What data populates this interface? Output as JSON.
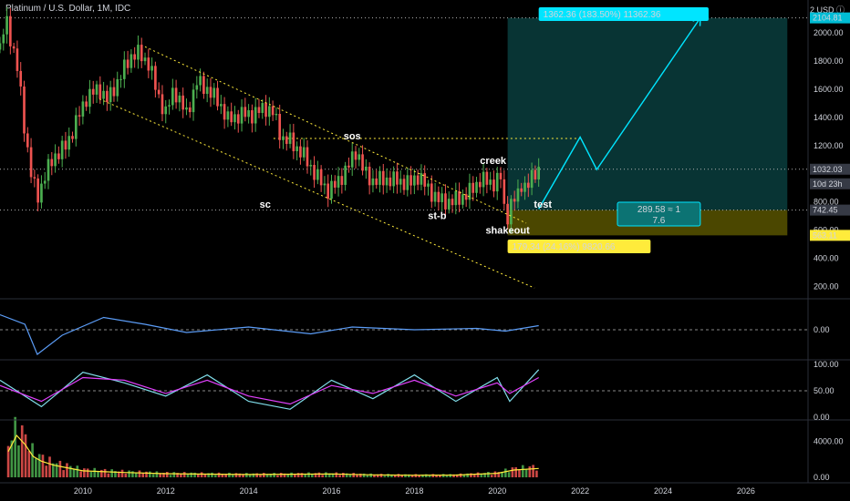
{
  "header": {
    "symbol_title": "Platinum / U.S. Dollar, 1M, IDC",
    "currency_unit": "2 USD ⓘ"
  },
  "colors": {
    "up": "#26a69a",
    "up_candle": "#4caf50",
    "down": "#ef5350",
    "cyan": "#00e5ff",
    "yellow": "#ffeb3b",
    "rsi_line": "#5b9cf6",
    "stoch_k": "#80deea",
    "stoch_d": "#e040fb",
    "vol_ma": "#ffeb3b"
  },
  "price_axis": {
    "ticks": [
      "2000.00",
      "1800.00",
      "1600.00",
      "1400.00",
      "1200.00",
      "800.00",
      "600.00",
      "400.00",
      "200.00"
    ],
    "badges": [
      {
        "text": "2104.81",
        "color": "#00bcd4"
      },
      {
        "text": "1032.03",
        "color": "#363a45"
      },
      {
        "text": "10d 23h",
        "color": "#363a45"
      },
      {
        "text": "742.45",
        "color": "#363a45"
      },
      {
        "text": "563.11",
        "color": "#ffeb3b"
      }
    ]
  },
  "time_axis": {
    "ticks": [
      "2010",
      "2012",
      "2014",
      "2016",
      "2018",
      "2020",
      "2022",
      "2024",
      "2026"
    ]
  },
  "annotations": {
    "target_box": "1362.36 (183.50%) 11362.36",
    "stop_box": "179.34 (24.16%) 9820.66",
    "ratio_line1": "289.58 ≈ 1",
    "ratio_line2": "7.6",
    "wyckoff": [
      {
        "text": "sos"
      },
      {
        "text": "sc"
      },
      {
        "text": "creek"
      },
      {
        "text": "test"
      },
      {
        "text": "st-b"
      },
      {
        "text": "shakeout"
      }
    ]
  },
  "indicators": {
    "osc1_ticks": [
      "0.00"
    ],
    "osc2_ticks": [
      "100.00",
      "50.00",
      "0.00"
    ],
    "volume_ticks": [
      "4000.00",
      "0.00"
    ]
  },
  "chart_data": {
    "type": "candlestick",
    "title": "Platinum / U.S. Dollar, 1M, IDC",
    "x_range": [
      2008.0,
      2027.5
    ],
    "y_range": [
      120,
      2180
    ],
    "key_levels": {
      "top_target": 2104.81,
      "last_price": 1032.03,
      "entry": 742.45,
      "stop": 563.11,
      "resistance": 1250
    },
    "price_path": [
      [
        2008.0,
        1880
      ],
      [
        2008.15,
        2100
      ],
      [
        2008.3,
        1900
      ],
      [
        2008.45,
        1700
      ],
      [
        2008.6,
        1300
      ],
      [
        2008.75,
        1000
      ],
      [
        2008.9,
        830
      ],
      [
        2009.1,
        1000
      ],
      [
        2009.3,
        1120
      ],
      [
        2009.6,
        1200
      ],
      [
        2009.9,
        1410
      ],
      [
        2010.1,
        1550
      ],
      [
        2010.4,
        1600
      ],
      [
        2010.6,
        1520
      ],
      [
        2010.9,
        1690
      ],
      [
        2011.15,
        1830
      ],
      [
        2011.3,
        1860
      ],
      [
        2011.6,
        1780
      ],
      [
        2011.8,
        1560
      ],
      [
        2012.0,
        1430
      ],
      [
        2012.2,
        1600
      ],
      [
        2012.5,
        1420
      ],
      [
        2012.75,
        1650
      ],
      [
        2013.0,
        1600
      ],
      [
        2013.3,
        1500
      ],
      [
        2013.5,
        1380
      ],
      [
        2013.8,
        1420
      ],
      [
        2014.1,
        1420
      ],
      [
        2014.4,
        1470
      ],
      [
        2014.6,
        1430
      ],
      [
        2014.8,
        1250
      ],
      [
        2015.0,
        1230
      ],
      [
        2015.3,
        1140
      ],
      [
        2015.6,
        1000
      ],
      [
        2015.9,
        880
      ],
      [
        2016.1,
        920
      ],
      [
        2016.4,
        1050
      ],
      [
        2016.6,
        1170
      ],
      [
        2016.8,
        1000
      ],
      [
        2017.0,
        950
      ],
      [
        2017.3,
        960
      ],
      [
        2017.6,
        950
      ],
      [
        2017.9,
        930
      ],
      [
        2018.1,
        990
      ],
      [
        2018.3,
        900
      ],
      [
        2018.6,
        810
      ],
      [
        2018.9,
        800
      ],
      [
        2019.1,
        830
      ],
      [
        2019.3,
        860
      ],
      [
        2019.6,
        960
      ],
      [
        2019.9,
        930
      ],
      [
        2020.1,
        980
      ],
      [
        2020.2,
        640
      ],
      [
        2020.3,
        770
      ],
      [
        2020.5,
        850
      ],
      [
        2020.6,
        950
      ],
      [
        2020.7,
        890
      ],
      [
        2020.9,
        1010
      ],
      [
        2021.0,
        1032
      ]
    ],
    "projection_path": [
      [
        2021.0,
        750
      ],
      [
        2022.0,
        1260
      ],
      [
        2022.4,
        1030
      ],
      [
        2024.9,
        2105
      ]
    ],
    "channel_upper": [
      [
        2011.5,
        1900
      ],
      [
        2020.7,
        650
      ]
    ],
    "channel_lower": [
      [
        2010.4,
        1530
      ],
      [
        2020.9,
        190
      ]
    ],
    "oscillator_1": [
      [
        2008.0,
        0.55
      ],
      [
        2008.6,
        0.2
      ],
      [
        2008.9,
        -0.9
      ],
      [
        2009.5,
        -0.2
      ],
      [
        2010.5,
        0.45
      ],
      [
        2011.5,
        0.2
      ],
      [
        2012.5,
        -0.1
      ],
      [
        2014.0,
        0.1
      ],
      [
        2015.5,
        -0.15
      ],
      [
        2016.5,
        0.1
      ],
      [
        2018.0,
        0.0
      ],
      [
        2019.5,
        0.05
      ],
      [
        2020.2,
        -0.05
      ],
      [
        2021.0,
        0.15
      ]
    ],
    "stoch_k": [
      [
        2008.0,
        70
      ],
      [
        2009.0,
        20
      ],
      [
        2010.0,
        85
      ],
      [
        2011.0,
        65
      ],
      [
        2012.0,
        40
      ],
      [
        2013.0,
        80
      ],
      [
        2014.0,
        30
      ],
      [
        2015.0,
        15
      ],
      [
        2016.0,
        70
      ],
      [
        2017.0,
        35
      ],
      [
        2018.0,
        80
      ],
      [
        2019.0,
        30
      ],
      [
        2020.0,
        75
      ],
      [
        2020.3,
        30
      ],
      [
        2021.0,
        90
      ]
    ],
    "stoch_d": [
      [
        2008.0,
        60
      ],
      [
        2009.0,
        30
      ],
      [
        2010.0,
        75
      ],
      [
        2011.0,
        70
      ],
      [
        2012.0,
        45
      ],
      [
        2013.0,
        70
      ],
      [
        2014.0,
        40
      ],
      [
        2015.0,
        25
      ],
      [
        2016.0,
        60
      ],
      [
        2017.0,
        45
      ],
      [
        2018.0,
        70
      ],
      [
        2019.0,
        40
      ],
      [
        2020.0,
        65
      ],
      [
        2020.3,
        45
      ],
      [
        2021.0,
        75
      ]
    ],
    "volume": [
      [
        2008.2,
        3200
      ],
      [
        2008.4,
        5200
      ],
      [
        2008.6,
        4100
      ],
      [
        2008.8,
        2600
      ],
      [
        2009.0,
        2000
      ],
      [
        2009.3,
        1500
      ],
      [
        2009.6,
        1200
      ],
      [
        2010.0,
        800
      ],
      [
        2011.0,
        600
      ],
      [
        2012.0,
        450
      ],
      [
        2013.0,
        400
      ],
      [
        2014.0,
        350
      ],
      [
        2015.0,
        380
      ],
      [
        2016.0,
        420
      ],
      [
        2017.0,
        300
      ],
      [
        2018.0,
        260
      ],
      [
        2019.0,
        280
      ],
      [
        2020.0,
        500
      ],
      [
        2020.4,
        900
      ],
      [
        2021.0,
        1100
      ]
    ]
  }
}
